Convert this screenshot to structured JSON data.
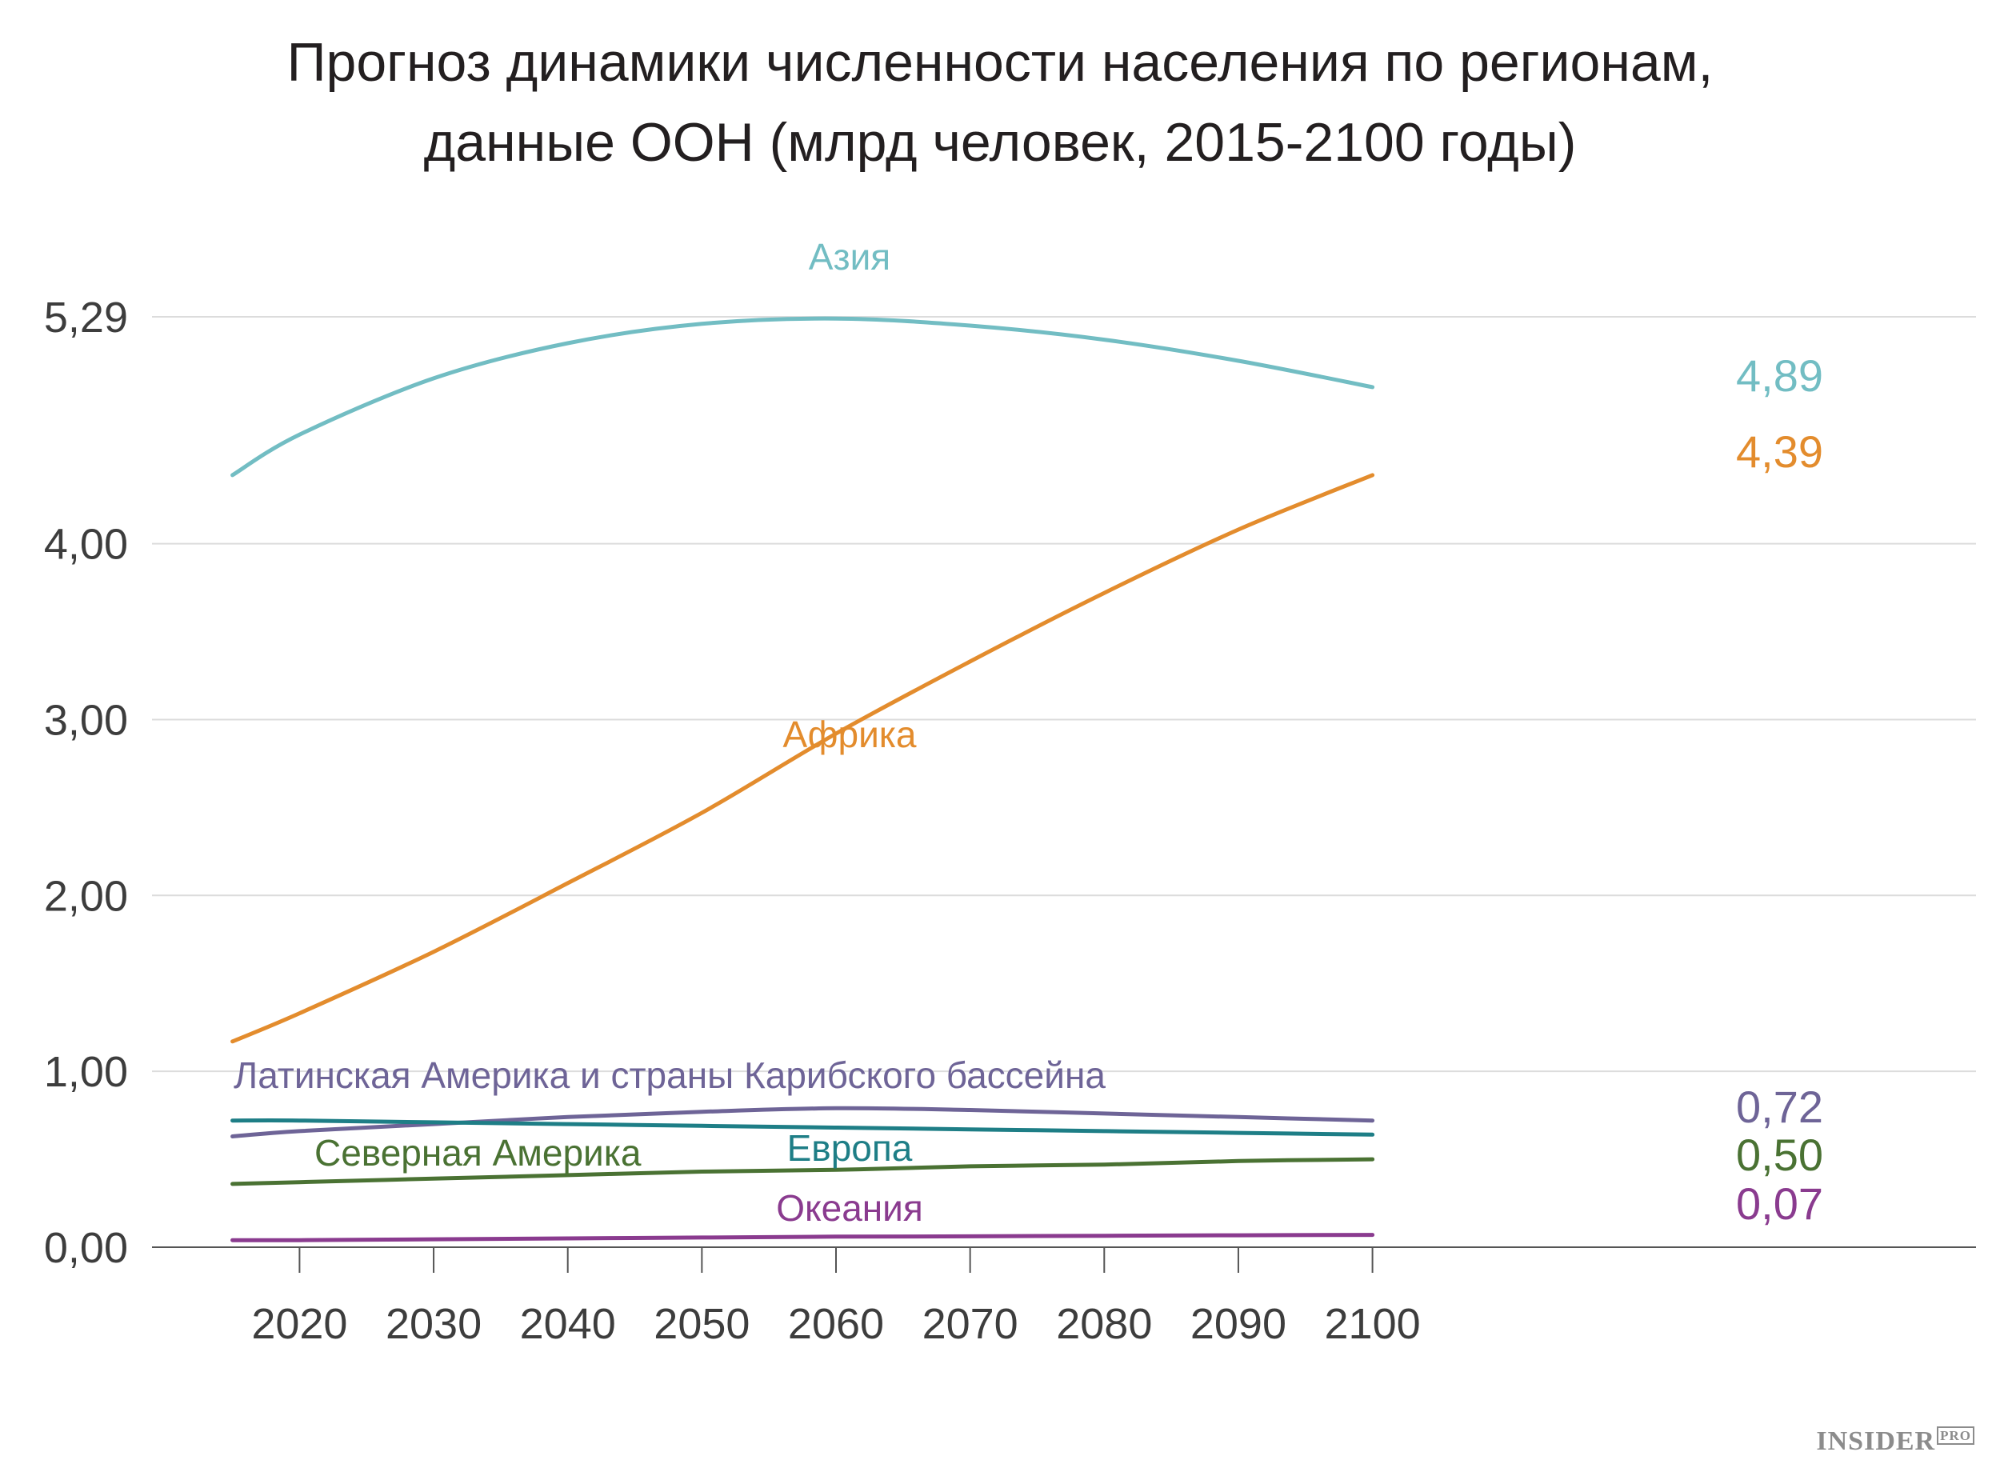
{
  "title": {
    "line1": "Прогноз динамики численности населения по регионам,",
    "line2": "данные ООН (млрд человек, 2015-2100 годы)"
  },
  "brand": {
    "name": "INSIDER",
    "suffix": "PRO"
  },
  "chart_data": {
    "type": "line",
    "title": "Прогноз динамики численности населения по регионам, данные ООН (млрд человек, 2015-2100 годы)",
    "xlabel": "",
    "ylabel": "",
    "x": [
      2015,
      2020,
      2030,
      2040,
      2050,
      2060,
      2070,
      2080,
      2090,
      2100
    ],
    "x_ticks": [
      "2020",
      "2030",
      "2040",
      "2050",
      "2060",
      "2070",
      "2080",
      "2090",
      "2100"
    ],
    "y_ticks": [
      {
        "value": 0,
        "label": "0,00"
      },
      {
        "value": 1,
        "label": "1,00"
      },
      {
        "value": 2,
        "label": "2,00"
      },
      {
        "value": 3,
        "label": "3,00"
      },
      {
        "value": 4,
        "label": "4,00"
      },
      {
        "value": 5.29,
        "label": "5,29"
      }
    ],
    "xlim": [
      2009,
      2145
    ],
    "ylim": [
      0,
      5.29
    ],
    "grid": true,
    "series": [
      {
        "name": "Азия",
        "color": "#72bdc3",
        "values": [
          4.39,
          4.62,
          4.94,
          5.14,
          5.25,
          5.28,
          5.24,
          5.16,
          5.04,
          4.89
        ],
        "end_label": "4,89"
      },
      {
        "name": "Африка",
        "color": "#e38c2d",
        "values": [
          1.17,
          1.33,
          1.68,
          2.07,
          2.47,
          2.92,
          3.33,
          3.72,
          4.08,
          4.39
        ],
        "end_label": "4,39"
      },
      {
        "name": "Латинская Америка и страны Карибского бассейна",
        "color": "#6e6497",
        "values": [
          0.63,
          0.66,
          0.7,
          0.74,
          0.77,
          0.79,
          0.78,
          0.76,
          0.74,
          0.72
        ],
        "end_label": "0,72"
      },
      {
        "name": "Европа",
        "color": "#1e7e86",
        "values": [
          0.72,
          0.72,
          0.71,
          0.7,
          0.69,
          0.68,
          0.67,
          0.66,
          0.65,
          0.64
        ],
        "end_label": ""
      },
      {
        "name": "Северная Америка",
        "color": "#4a7233",
        "values": [
          0.36,
          0.37,
          0.39,
          0.41,
          0.43,
          0.44,
          0.46,
          0.47,
          0.49,
          0.5
        ],
        "end_label": "0,50"
      },
      {
        "name": "Океания",
        "color": "#8a3b8f",
        "values": [
          0.04,
          0.04,
          0.045,
          0.05,
          0.055,
          0.06,
          0.062,
          0.065,
          0.068,
          0.07
        ],
        "end_label": "0,07"
      }
    ]
  }
}
